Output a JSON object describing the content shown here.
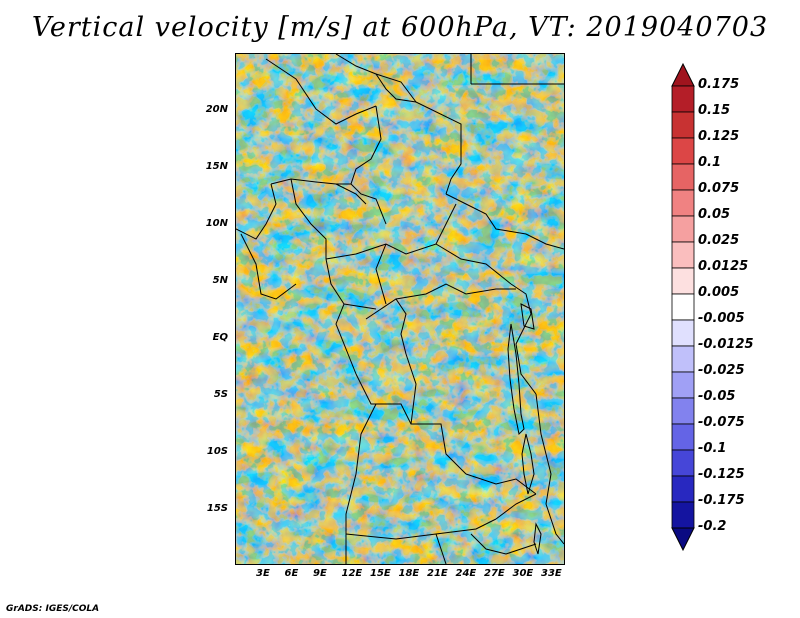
{
  "title": "Vertical velocity [m/s] at 600hPa, VT: 2019040703",
  "footer": "GrADS: IGES/COLA",
  "map": {
    "lat_labels": [
      "20N",
      "15N",
      "10N",
      "5N",
      "EQ",
      "5S",
      "10S",
      "15S"
    ],
    "lon_labels": [
      "3E",
      "6E",
      "9E",
      "12E",
      "15E",
      "18E",
      "21E",
      "24E",
      "27E",
      "30E",
      "33E"
    ],
    "lat_values": [
      20,
      15,
      10,
      5,
      0,
      -5,
      -10,
      -15
    ],
    "lon_values": [
      3,
      6,
      9,
      12,
      15,
      18,
      21,
      24,
      27,
      30,
      33
    ]
  },
  "colorbar": {
    "labels": [
      "0.175",
      "0.15",
      "0.125",
      "0.1",
      "0.075",
      "0.05",
      "0.025",
      "0.0125",
      "0.005",
      "-0.005",
      "-0.0125",
      "-0.025",
      "-0.05",
      "-0.075",
      "-0.1",
      "-0.125",
      "-0.175",
      "-0.2"
    ],
    "colors": [
      "#a0141e",
      "#b41e28",
      "#c83232",
      "#dc4646",
      "#e66464",
      "#f08282",
      "#f5a0a0",
      "#fabebe",
      "#fde0e0",
      "#ffffff",
      "#e0e0fe",
      "#c0c0fa",
      "#a0a0f5",
      "#8282ee",
      "#6464e6",
      "#4646d8",
      "#2828c0",
      "#1414a0",
      "#0a0a82"
    ]
  }
}
